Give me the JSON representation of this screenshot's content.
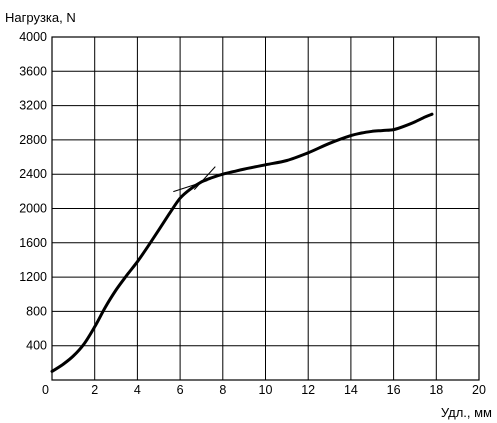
{
  "chart_data": {
    "type": "line",
    "title": "",
    "xlabel": "Удл., мм",
    "ylabel": "Нагрузка, N",
    "xlim": [
      0,
      20
    ],
    "ylim": [
      0,
      4000
    ],
    "x_ticks": [
      "0",
      "2",
      "4",
      "6",
      "8",
      "10",
      "12",
      "14",
      "16",
      "18",
      "20"
    ],
    "y_ticks": [
      "400",
      "800",
      "1200",
      "1600",
      "2000",
      "2400",
      "2800",
      "3200",
      "3600",
      "4000"
    ],
    "grid": true,
    "legend": "none",
    "series": [
      {
        "x": [
          0,
          0.5,
          1,
          1.5,
          2,
          2.5,
          3,
          3.5,
          4,
          4.5,
          5,
          5.5,
          6,
          6.5,
          7,
          7.5,
          8,
          8.5,
          9,
          10,
          11,
          12,
          13,
          14,
          14.5,
          15,
          15.5,
          16,
          16.5,
          17,
          17.5,
          17.8
        ],
        "y": [
          100,
          180,
          280,
          420,
          620,
          850,
          1050,
          1220,
          1380,
          1560,
          1750,
          1940,
          2120,
          2230,
          2310,
          2360,
          2400,
          2430,
          2460,
          2510,
          2560,
          2650,
          2760,
          2850,
          2880,
          2900,
          2910,
          2920,
          2960,
          3010,
          3070,
          3100
        ]
      }
    ],
    "annotations": [
      {
        "type": "tangent-mark",
        "x": 6.9,
        "y": 2290
      }
    ]
  }
}
